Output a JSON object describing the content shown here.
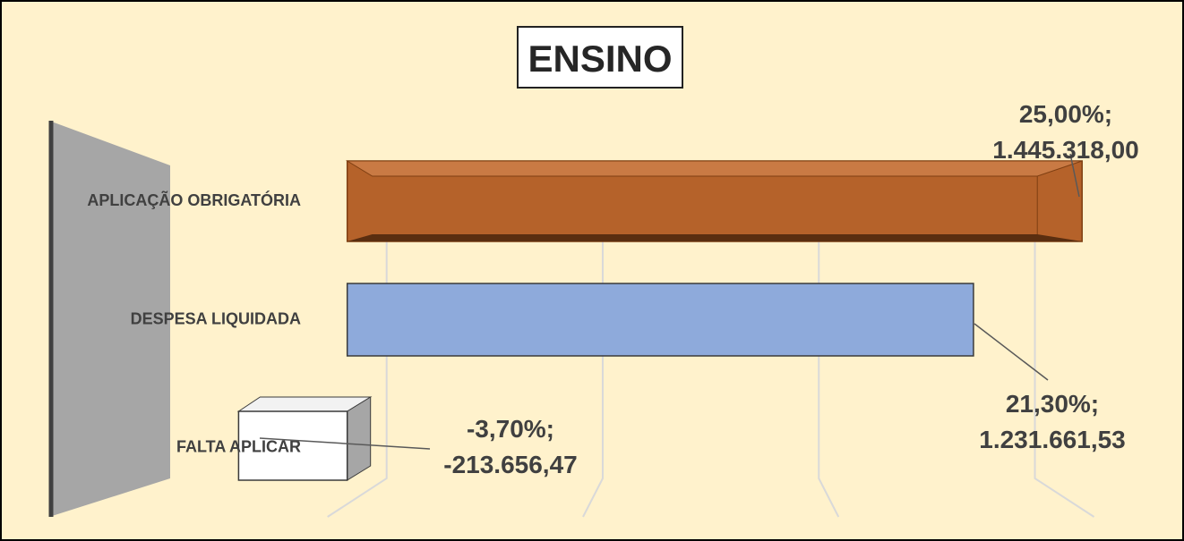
{
  "chart_data": {
    "type": "bar",
    "orientation": "horizontal",
    "title": "ENSINO",
    "categories": [
      "APLICAÇÃO OBRIGATÓRIA",
      "DESPESA LIQUIDADA",
      "FALTA APLICAR"
    ],
    "series": [
      {
        "name": "ENSINO",
        "colors": [
          "#b5622a",
          "#8eaadb",
          "#ffffff"
        ],
        "values": [
          1445318,
          1231661.53,
          -213656.47
        ],
        "value_labels": [
          "25,00%; 1.445.318,00",
          "21,30%; 1.231.661,53",
          "-3,70%; -213.656,47"
        ]
      }
    ],
    "xlim": [
      -350000,
      1570000
    ],
    "xticks": [
      0,
      425000,
      850000,
      1275000
    ],
    "grid": true
  }
}
